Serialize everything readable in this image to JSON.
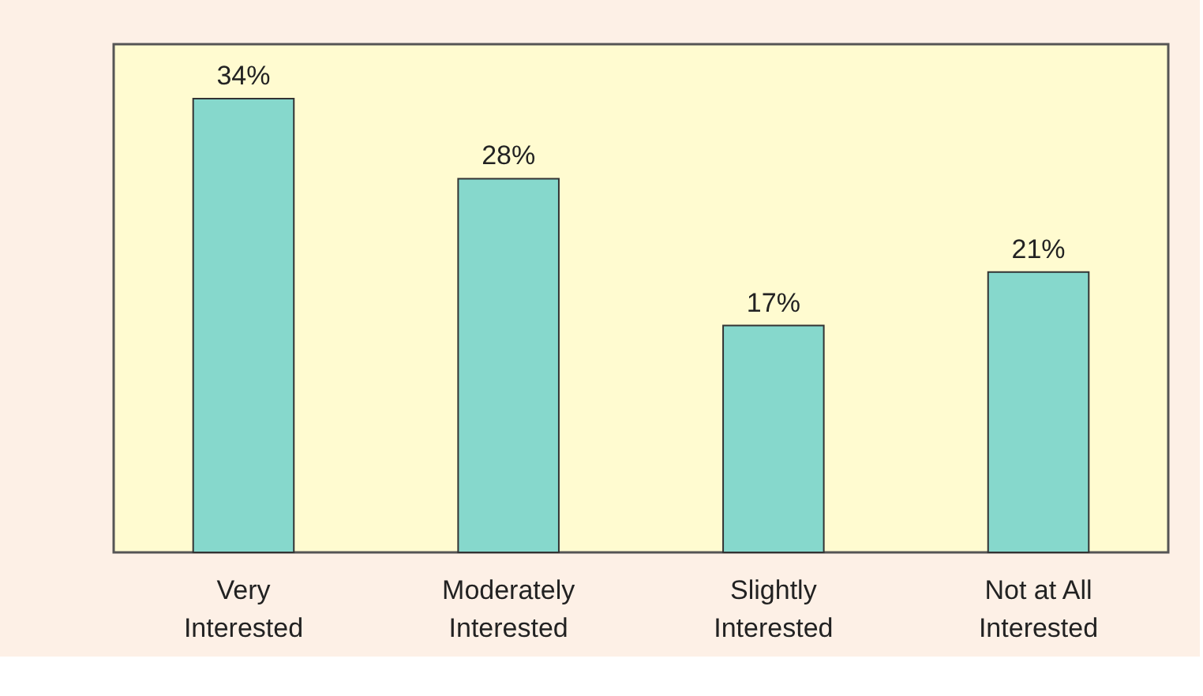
{
  "chart_data": {
    "type": "bar",
    "categories": [
      "Very Interested",
      "Moderately Interested",
      "Slightly Interested",
      "Not at All Interested"
    ],
    "values": [
      34,
      28,
      17,
      21
    ],
    "value_labels": [
      "34%",
      "28%",
      "17%",
      "21%"
    ],
    "color": "#86d8cc",
    "grid": false
  }
}
